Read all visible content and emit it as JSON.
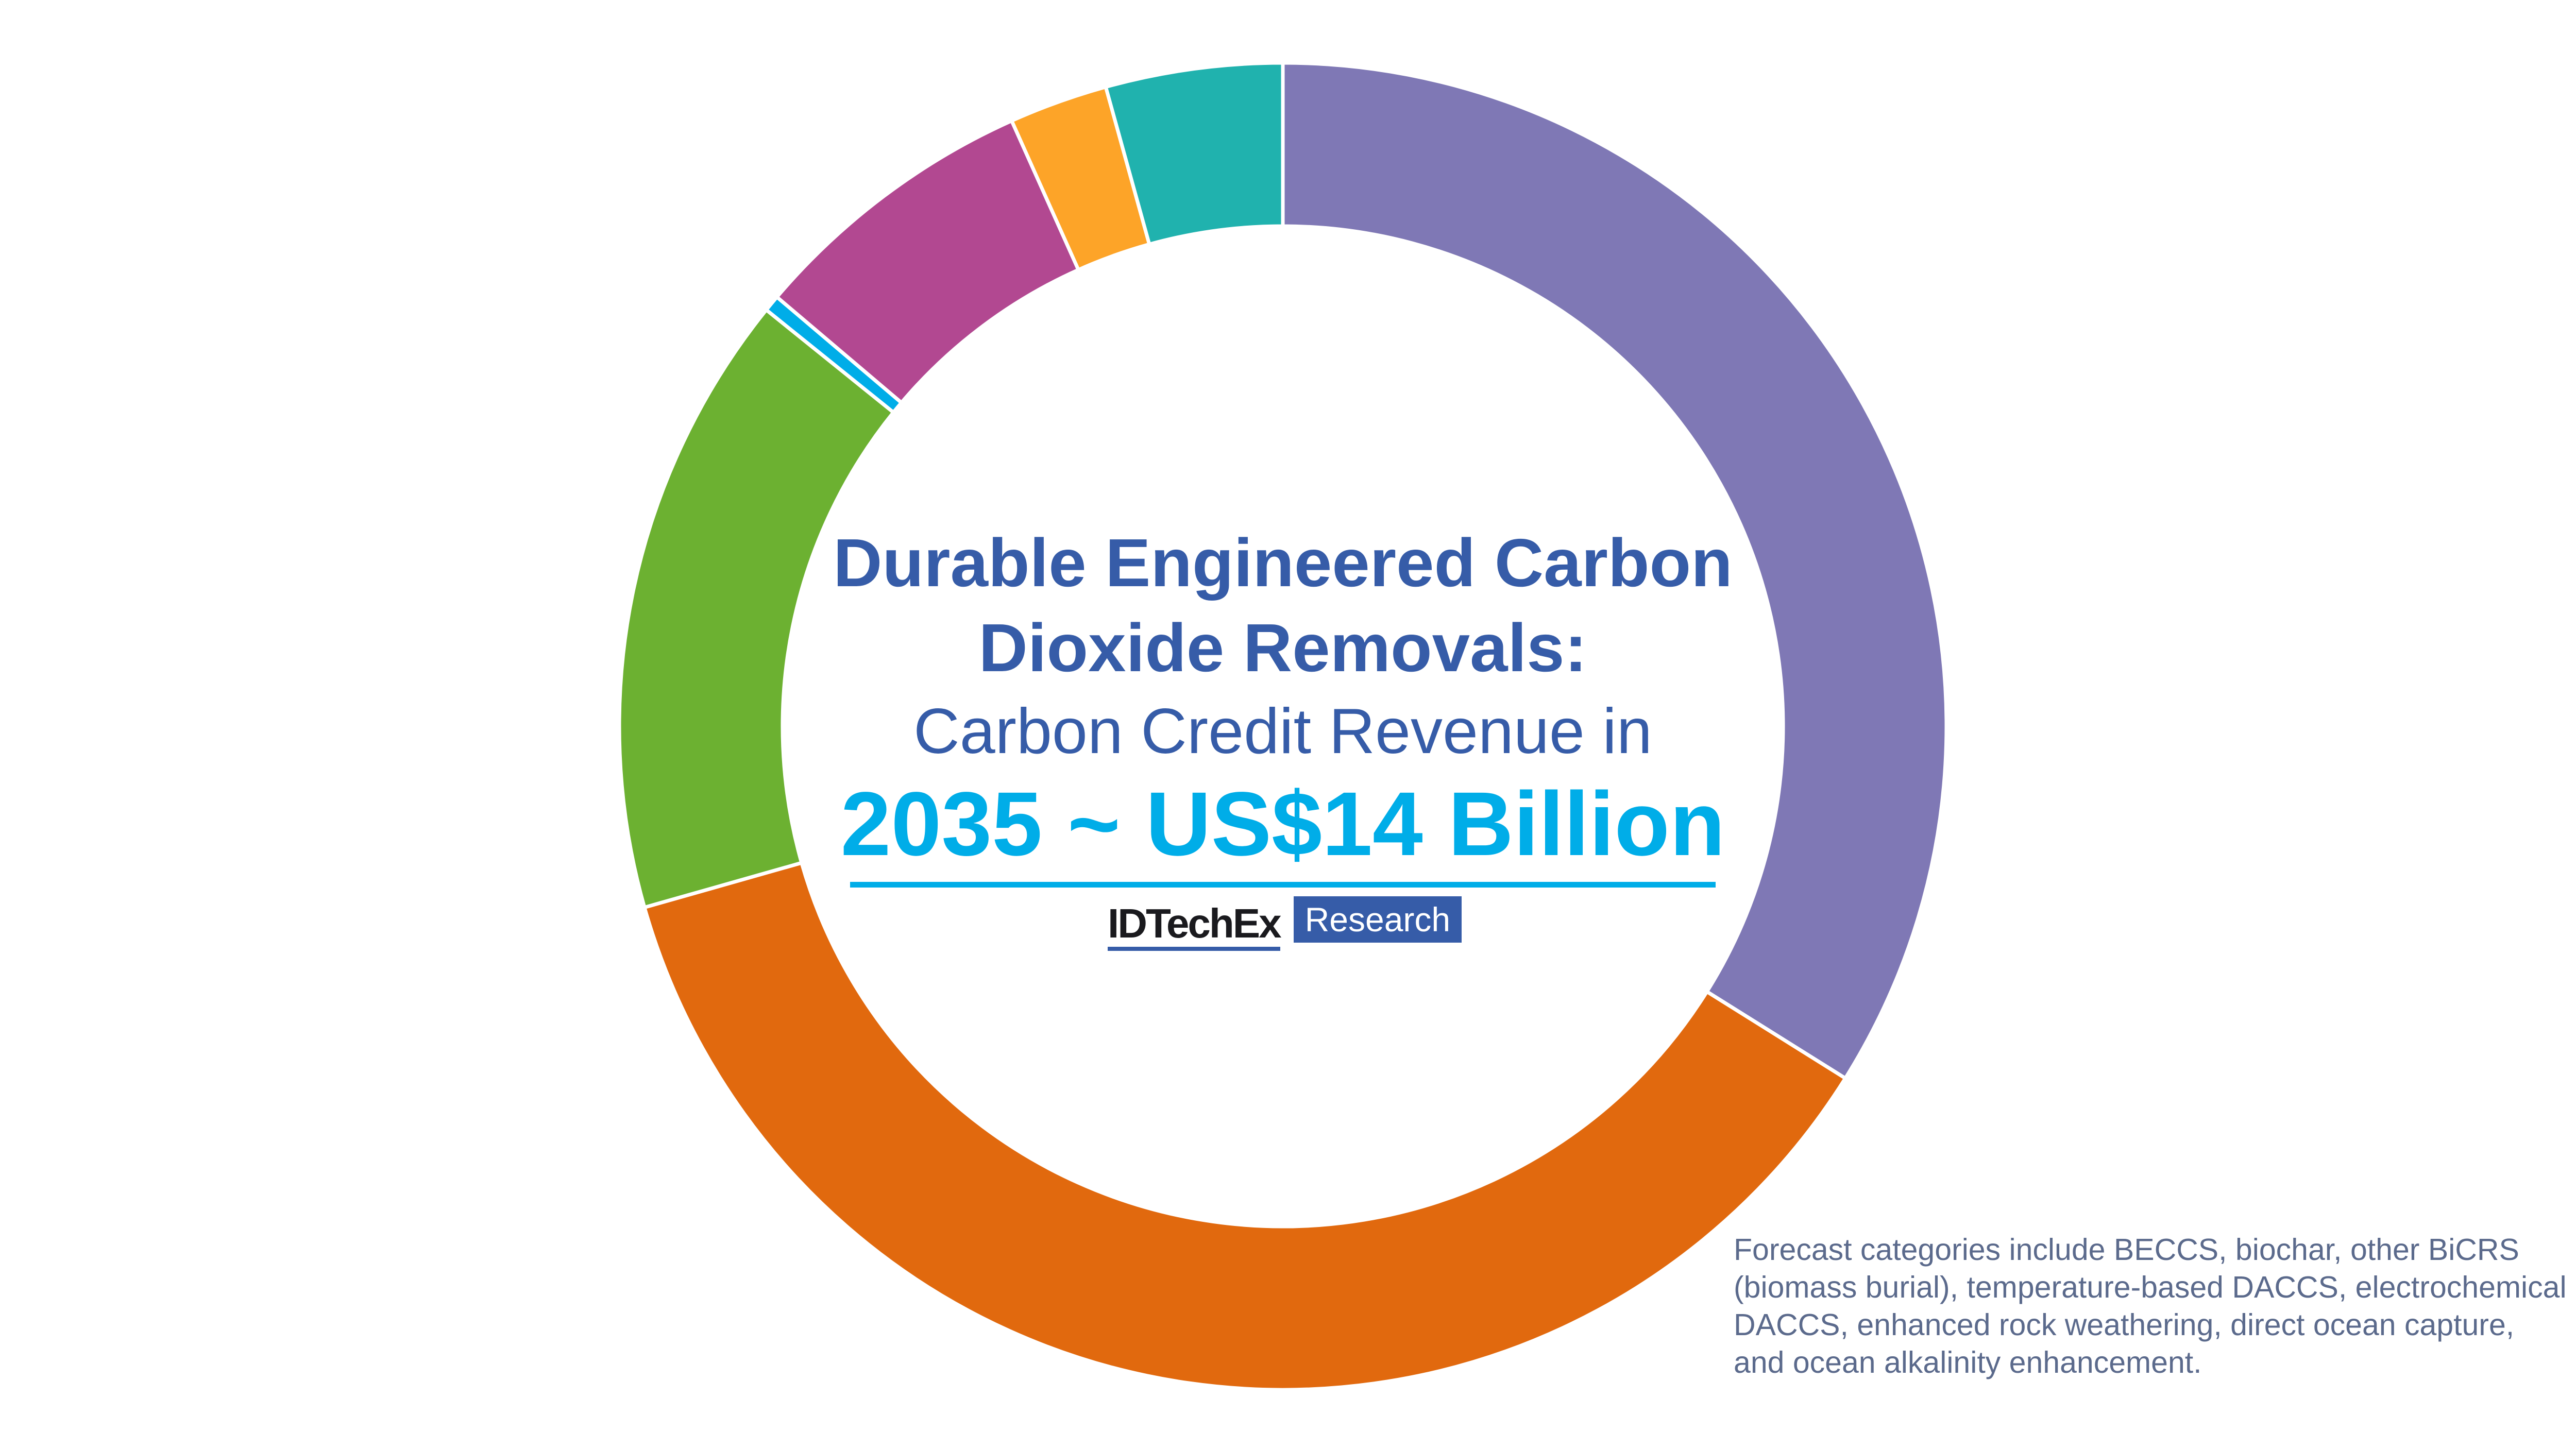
{
  "chart_data": {
    "type": "pie",
    "variant": "donut",
    "start_angle_deg": 0,
    "direction": "clockwise",
    "unit": "percent of total (estimated from slice angles)",
    "values": [
      33.9,
      36.7,
      15.2,
      0.4,
      7.1,
      2.4,
      4.3
    ],
    "colors": [
      "#7f78b5",
      "#e1690e",
      "#6cb131",
      "#00ade8",
      "#b24891",
      "#fda428",
      "#20b2ae"
    ],
    "legend": "none",
    "title_lines": [
      "Durable Engineered Carbon",
      "Dioxide Removals:"
    ],
    "subtitle": "Carbon Credit Revenue in",
    "headline": "2035 ~ US$14 Billion"
  },
  "logo": {
    "brand": "IDTechEx",
    "tag": "Research"
  },
  "footnote": "Forecast categories include BECCS, biochar, other BiCRS (biomass burial), temperature-based DACCS, electrochemical DACCS, enhanced rock weathering, direct ocean capture, and ocean alkalinity enhancement.",
  "colors": {
    "title": "#365ca8",
    "accent": "#00ade8"
  }
}
